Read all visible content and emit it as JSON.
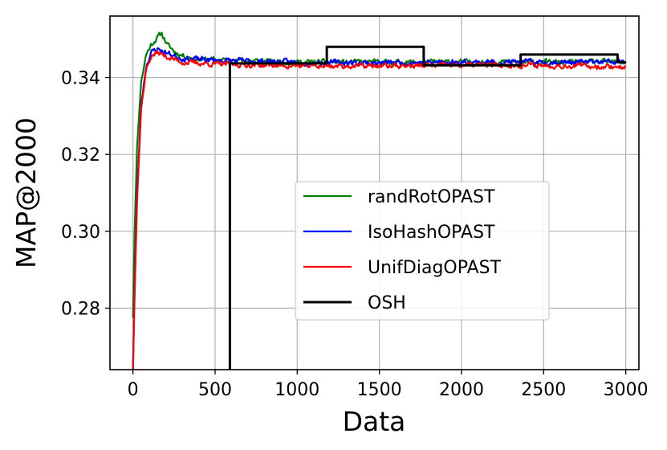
{
  "chart_data": {
    "type": "line",
    "title": "",
    "xlabel": "Data",
    "ylabel": "MAP@2000",
    "xlim": [
      -140,
      3080
    ],
    "ylim": [
      0.264,
      0.356
    ],
    "xticks": [
      0,
      500,
      1000,
      1500,
      2000,
      2500,
      3000
    ],
    "yticks": [
      0.28,
      0.3,
      0.32,
      0.34
    ],
    "ytick_labels": [
      "0.28",
      "0.30",
      "0.32",
      "0.34"
    ],
    "grid": true,
    "legend_position": "center-right",
    "series": [
      {
        "name": "randRotOPAST",
        "color": "#008000",
        "kind": "noisy-curve",
        "points": [
          [
            0,
            0.2775
          ],
          [
            10,
            0.3
          ],
          [
            25,
            0.322
          ],
          [
            50,
            0.339
          ],
          [
            80,
            0.346
          ],
          [
            110,
            0.3485
          ],
          [
            150,
            0.3505
          ],
          [
            175,
            0.3515
          ],
          [
            210,
            0.3485
          ],
          [
            260,
            0.3465
          ],
          [
            320,
            0.3455
          ],
          [
            400,
            0.3448
          ],
          [
            600,
            0.3445
          ],
          [
            1000,
            0.344
          ],
          [
            1500,
            0.344
          ],
          [
            2000,
            0.344
          ],
          [
            2500,
            0.344
          ],
          [
            3000,
            0.344
          ]
        ],
        "noise": 0.0012,
        "seed": 11
      },
      {
        "name": "IsoHashOPAST",
        "color": "#0000ff",
        "kind": "noisy-curve",
        "points": [
          [
            0,
            0.264
          ],
          [
            10,
            0.285
          ],
          [
            25,
            0.31
          ],
          [
            50,
            0.333
          ],
          [
            80,
            0.343
          ],
          [
            110,
            0.3465
          ],
          [
            150,
            0.3475
          ],
          [
            200,
            0.3465
          ],
          [
            300,
            0.345
          ],
          [
            500,
            0.3445
          ],
          [
            1000,
            0.344
          ],
          [
            1500,
            0.3438
          ],
          [
            2000,
            0.344
          ],
          [
            2500,
            0.344
          ],
          [
            3000,
            0.344
          ]
        ],
        "noise": 0.0013,
        "seed": 23
      },
      {
        "name": "UnifDiagOPAST",
        "color": "#ff0000",
        "kind": "noisy-curve",
        "points": [
          [
            0,
            0.264
          ],
          [
            10,
            0.283
          ],
          [
            25,
            0.308
          ],
          [
            50,
            0.332
          ],
          [
            80,
            0.342
          ],
          [
            110,
            0.3455
          ],
          [
            150,
            0.3465
          ],
          [
            200,
            0.3455
          ],
          [
            300,
            0.344
          ],
          [
            500,
            0.3435
          ],
          [
            1000,
            0.343
          ],
          [
            1500,
            0.343
          ],
          [
            2000,
            0.3432
          ],
          [
            2500,
            0.3432
          ],
          [
            3000,
            0.3428
          ]
        ],
        "noise": 0.0012,
        "seed": 37
      },
      {
        "name": "OSH",
        "color": "#000000",
        "kind": "step",
        "points": [
          [
            590,
            0.264
          ],
          [
            590,
            0.3437
          ],
          [
            1180,
            0.3437
          ],
          [
            1180,
            0.348
          ],
          [
            1770,
            0.348
          ],
          [
            1770,
            0.3432
          ],
          [
            2360,
            0.3432
          ],
          [
            2360,
            0.346
          ],
          [
            2950,
            0.346
          ],
          [
            2950,
            0.344
          ],
          [
            3000,
            0.344
          ]
        ]
      }
    ]
  }
}
